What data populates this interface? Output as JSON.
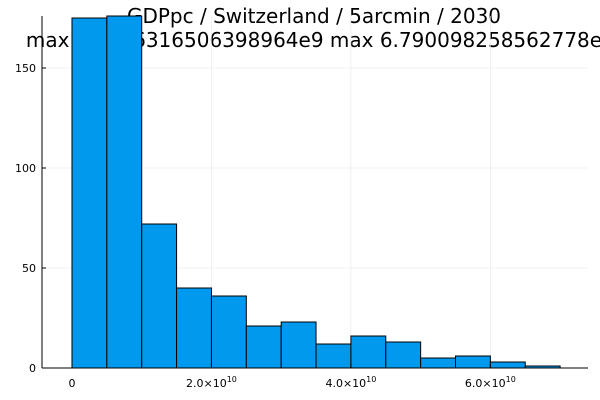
{
  "chart_data": {
    "type": "bar",
    "title": "GDPpc / Switzerland / 5arcmin / 2030",
    "subtitle": "max 1.0766316506398964e9  max 6.790098258562778e",
    "xlabel": "",
    "ylabel": "",
    "bin_width": 5000000000,
    "bin_starts": [
      0,
      5000000000,
      10000000000,
      15000000000,
      20000000000,
      25000000000,
      30000000000,
      35000000000,
      40000000000,
      45000000000,
      50000000000,
      55000000000,
      60000000000,
      65000000000
    ],
    "values": [
      175,
      176,
      72,
      40,
      36,
      21,
      23,
      12,
      16,
      13,
      5,
      6,
      3,
      1
    ],
    "xlim": [
      -4300000000,
      74000000000
    ],
    "ylim": [
      0,
      176
    ],
    "x_ticks": [
      {
        "value": 0,
        "mantissa": "0",
        "exp": ""
      },
      {
        "value": 20000000000,
        "mantissa": "2.0×10",
        "exp": "10"
      },
      {
        "value": 40000000000,
        "mantissa": "4.0×10",
        "exp": "10"
      },
      {
        "value": 60000000000,
        "mantissa": "6.0×10",
        "exp": "10"
      }
    ],
    "y_ticks": [
      0,
      50,
      100,
      150
    ],
    "grid": true,
    "legend": "none",
    "bar_color": "#0099ee",
    "bar_edge_color": "#000000"
  }
}
